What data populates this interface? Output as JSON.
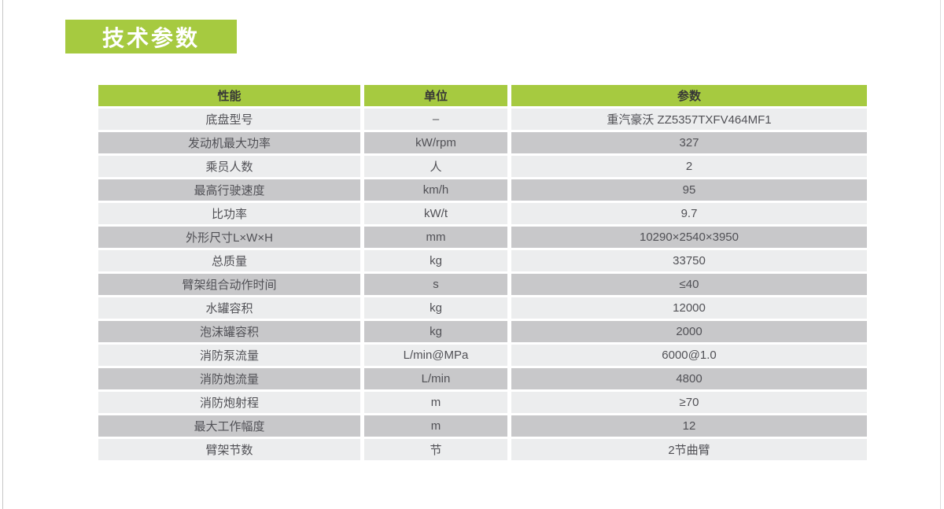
{
  "page": {
    "title": "技术参数"
  },
  "colors": {
    "accent_green": "#a6ca40",
    "row_light": "#ecedee",
    "row_dark": "#c8c8ca",
    "text_dark": "#515156"
  },
  "table": {
    "headers": [
      "性能",
      "单位",
      "参数"
    ],
    "rows": [
      {
        "perf": "底盘型号",
        "unit": "–",
        "value": "重汽豪沃 ZZ5357TXFV464MF1"
      },
      {
        "perf": "发动机最大功率",
        "unit": "kW/rpm",
        "value": "327"
      },
      {
        "perf": "乘员人数",
        "unit": "人",
        "value": "2"
      },
      {
        "perf": "最高行驶速度",
        "unit": "km/h",
        "value": "95"
      },
      {
        "perf": "比功率",
        "unit": "kW/t",
        "value": "9.7"
      },
      {
        "perf": "外形尺寸L×W×H",
        "unit": "mm",
        "value": "10290×2540×3950"
      },
      {
        "perf": "总质量",
        "unit": "kg",
        "value": "33750"
      },
      {
        "perf": "臂架组合动作时间",
        "unit": "s",
        "value": "≤40"
      },
      {
        "perf": "水罐容积",
        "unit": "kg",
        "value": "12000"
      },
      {
        "perf": "泡沫罐容积",
        "unit": "kg",
        "value": "2000"
      },
      {
        "perf": "消防泵流量",
        "unit": "L/min@MPa",
        "value": "6000@1.0"
      },
      {
        "perf": "消防炮流量",
        "unit": "L/min",
        "value": "4800"
      },
      {
        "perf": "消防炮射程",
        "unit": "m",
        "value": "≥70"
      },
      {
        "perf": "最大工作幅度",
        "unit": "m",
        "value": "12"
      },
      {
        "perf": "臂架节数",
        "unit": "节",
        "value": "2节曲臂"
      }
    ]
  }
}
